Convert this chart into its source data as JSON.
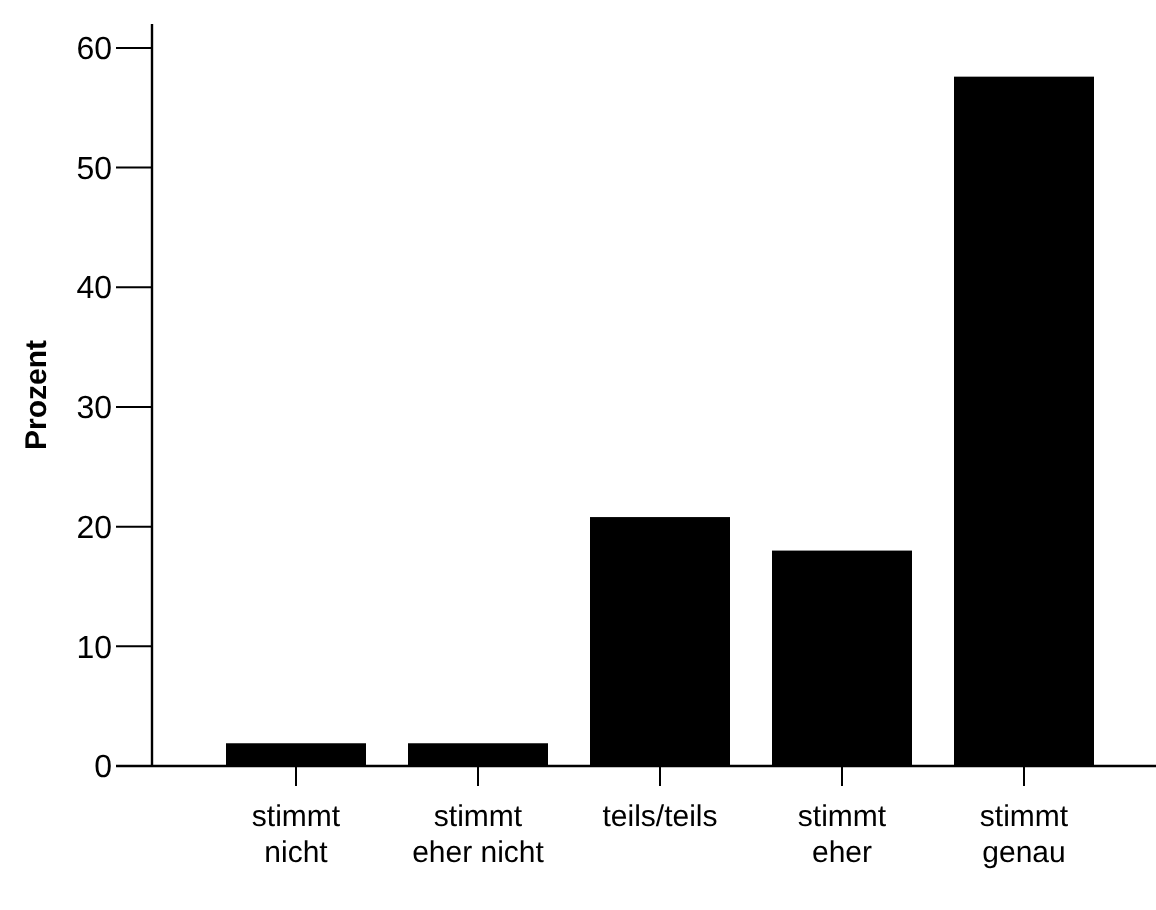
{
  "chart_data": {
    "type": "bar",
    "ylabel": "Prozent",
    "categories": [
      "stimmt nicht",
      "stimmt eher nicht",
      "teils/teils",
      "stimmt eher",
      "stimmt genau"
    ],
    "values": [
      1.9,
      1.9,
      20.8,
      18.0,
      57.6
    ],
    "color": "#000000",
    "ylim": [
      0,
      62
    ],
    "yticks": [
      0,
      10,
      20,
      30,
      40,
      50,
      60
    ],
    "grid": false
  }
}
